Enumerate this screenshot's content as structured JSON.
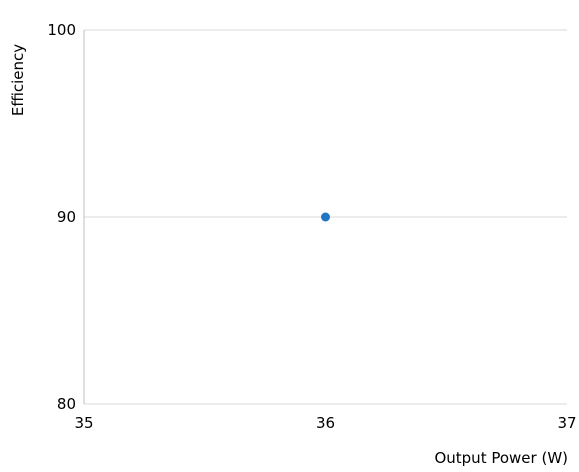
{
  "chart_data": {
    "type": "scatter",
    "xlabel": "Output Power (W)",
    "ylabel": "Efficiency",
    "xlim": [
      35,
      37
    ],
    "ylim": [
      80,
      100
    ],
    "x_ticks": [
      "35",
      "36",
      "37"
    ],
    "y_ticks": [
      "80",
      "90",
      "100"
    ],
    "grid": "horizontal",
    "legend": "none",
    "series": [
      {
        "x": [
          36
        ],
        "y": [
          90
        ],
        "color": "#1f77c4"
      }
    ]
  }
}
